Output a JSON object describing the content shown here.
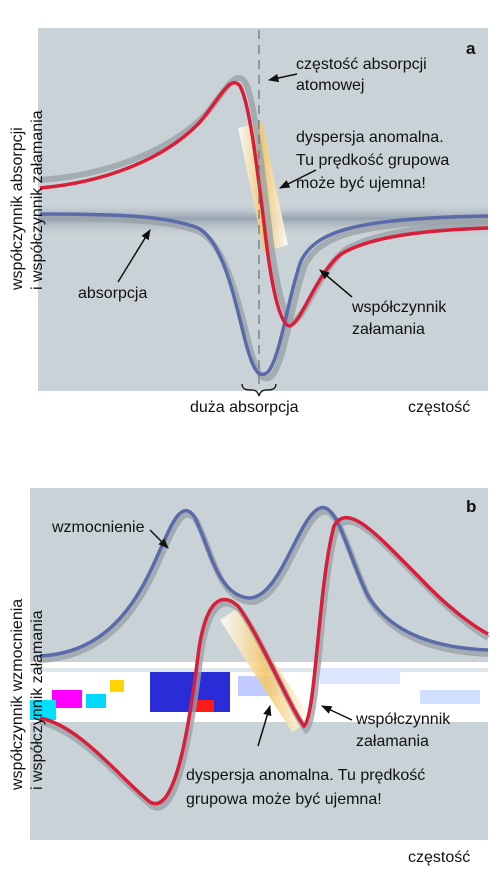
{
  "panel_a": {
    "letter": "a",
    "ylabel_line1": "współczynnik absorpcji",
    "ylabel_line2": "i współczynnik załamania",
    "atomic_line1": "częstość absorpcji",
    "atomic_line2": "atomowej",
    "anom_line1": "dyspersja anomalna.",
    "anom_line2": "Tu prędkość grupowa",
    "anom_line3": "może być ujemna!",
    "absorption": "absorpcja",
    "refr_line1": "współczynnik",
    "refr_line2": "załamania",
    "big_absorption": "duża absorpcja",
    "xlabel": "częstość"
  },
  "panel_b": {
    "letter": "b",
    "ylabel_line1": "współczynnik wzmocnienia",
    "ylabel_line2": "i współczynnik załamania",
    "gain": "wzmocnienie",
    "refr_line1": "współczynnik",
    "refr_line2": "załamania",
    "anom_line1": "dyspersja anomalna. Tu prędkość",
    "anom_line2": "grupowa może być ujemna!",
    "xlabel": "częstość"
  },
  "colors": {
    "panel_bg": "#c9d2d6",
    "blue_curve": "#5b6aa8",
    "red_curve": "#d81e3a",
    "shadow": "#9aa3a8",
    "highlight": "#f3c76a"
  }
}
